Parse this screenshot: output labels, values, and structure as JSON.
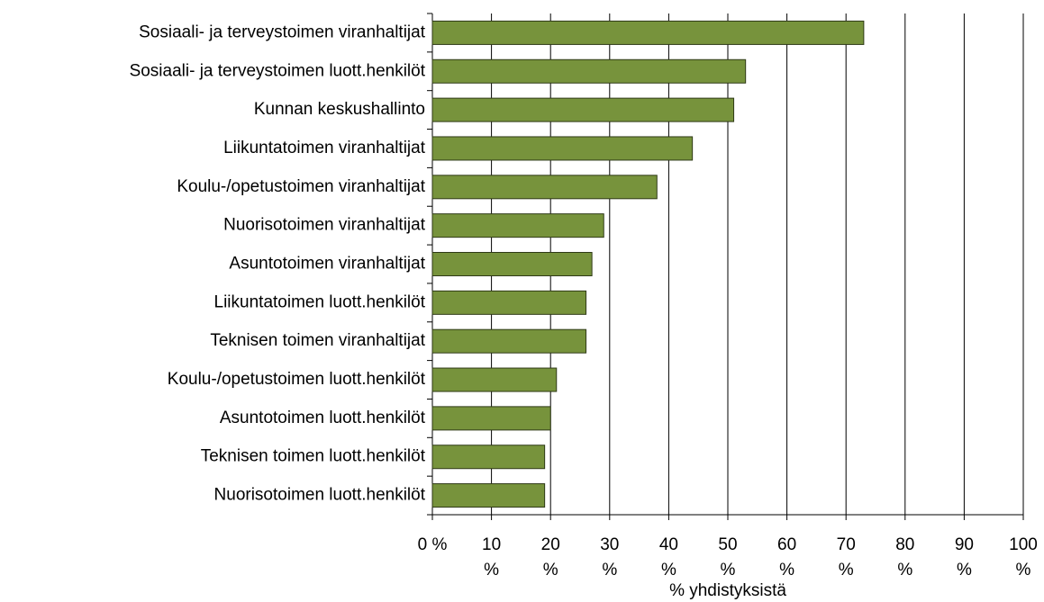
{
  "chart_data": {
    "type": "barh",
    "categories": [
      "Sosiaali- ja terveystoimen viranhaltijat",
      "Sosiaali- ja terveystoimen luott.henkilöt",
      "Kunnan keskushallinto",
      "Liikuntatoimen viranhaltijat",
      "Koulu-/opetustoimen viranhaltijat",
      "Nuorisotoimen viranhaltijat",
      "Asuntotoimen viranhaltijat",
      "Liikuntatoimen luott.henkilöt",
      "Teknisen toimen viranhaltijat",
      "Koulu-/opetustoimen luott.henkilöt",
      "Asuntotoimen luott.henkilöt",
      "Teknisen toimen luott.henkilöt",
      "Nuorisotoimen luott.henkilöt"
    ],
    "values": [
      73,
      53,
      51,
      44,
      38,
      29,
      27,
      26,
      26,
      21,
      20,
      19,
      19
    ],
    "color": "#77933c",
    "x_label": "% yhdistyksistä",
    "xlim": [
      0,
      100
    ],
    "xticks": [
      {
        "value": 0,
        "label": "0 %"
      },
      {
        "value": 10,
        "label": "10 %"
      },
      {
        "value": 20,
        "label": "20 %"
      },
      {
        "value": 30,
        "label": "30 %"
      },
      {
        "value": 40,
        "label": "40 %"
      },
      {
        "value": 50,
        "label": "50 %"
      },
      {
        "value": 60,
        "label": "60 %"
      },
      {
        "value": 70,
        "label": "70 %"
      },
      {
        "value": 80,
        "label": "80 %"
      },
      {
        "value": 90,
        "label": "90 %"
      },
      {
        "value": 100,
        "label": "100 %"
      }
    ],
    "grid": true
  }
}
